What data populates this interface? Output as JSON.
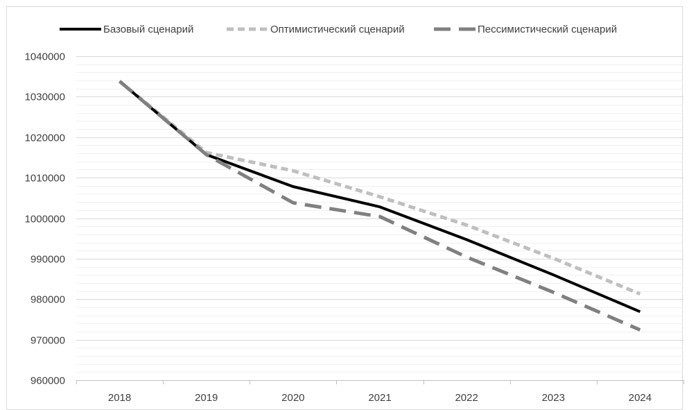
{
  "chart_data": {
    "type": "line",
    "title": "",
    "xlabel": "",
    "ylabel": "",
    "categories": [
      "2018",
      "2019",
      "2020",
      "2021",
      "2022",
      "2023",
      "2024"
    ],
    "ylim": [
      960000,
      1040000
    ],
    "y_major_ticks": [
      960000,
      970000,
      980000,
      990000,
      1000000,
      1010000,
      1020000,
      1030000,
      1040000
    ],
    "y_tick_labels": [
      "960000",
      "970000",
      "980000",
      "990000",
      "1000000",
      "1010000",
      "1020000",
      "1030000",
      "1040000"
    ],
    "grid": true,
    "legend_position": "top",
    "series": [
      {
        "name": "Базовый сценарий",
        "values": [
          1033800,
          1015700,
          1007800,
          1002800,
          994700,
          986000,
          976900
        ],
        "color": "#000000",
        "style": "solid"
      },
      {
        "name": "Оптимистический сценарий",
        "values": [
          1033800,
          1016200,
          1011700,
          1005300,
          998300,
          990100,
          981300
        ],
        "color": "#bfbfbf",
        "style": "short-dash"
      },
      {
        "name": "Пессимистический сценарий",
        "values": [
          1033800,
          1015700,
          1003800,
          1000400,
          990400,
          981700,
          972400
        ],
        "color": "#808080",
        "style": "long-dash"
      }
    ]
  }
}
